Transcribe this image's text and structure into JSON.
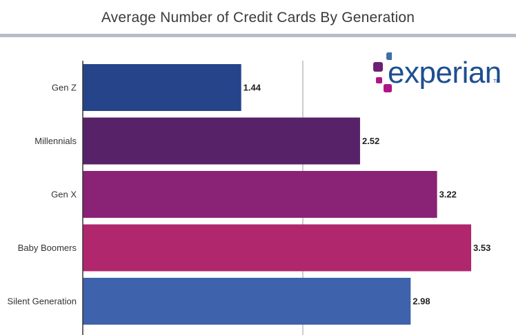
{
  "header": {
    "title": "Average Number of Credit Cards By Generation"
  },
  "logo": {
    "wordmark": "experian",
    "trademark": "TM",
    "colors": {
      "text": "#1d4f91",
      "square_blue": "#426da9",
      "square_purple": "#6d2077",
      "square_magenta": "#af1685"
    }
  },
  "chart_data": {
    "type": "bar",
    "orientation": "horizontal",
    "title": "Average Number of Credit Cards By Generation",
    "categories": [
      "Gen Z",
      "Millennials",
      "Gen X",
      "Baby Boomers",
      "Silent Generation"
    ],
    "values": [
      1.44,
      2.52,
      3.22,
      3.53,
      2.98
    ],
    "value_labels": [
      "1.44",
      "2.52",
      "3.22",
      "3.53",
      "2.98"
    ],
    "colors": [
      "#26448a",
      "#582269",
      "#8a2275",
      "#b0276d",
      "#3e63ac"
    ],
    "xlim": [
      0,
      4
    ],
    "gridlines_at": [
      2
    ],
    "xlabel": "",
    "ylabel": "",
    "legend": "none"
  }
}
